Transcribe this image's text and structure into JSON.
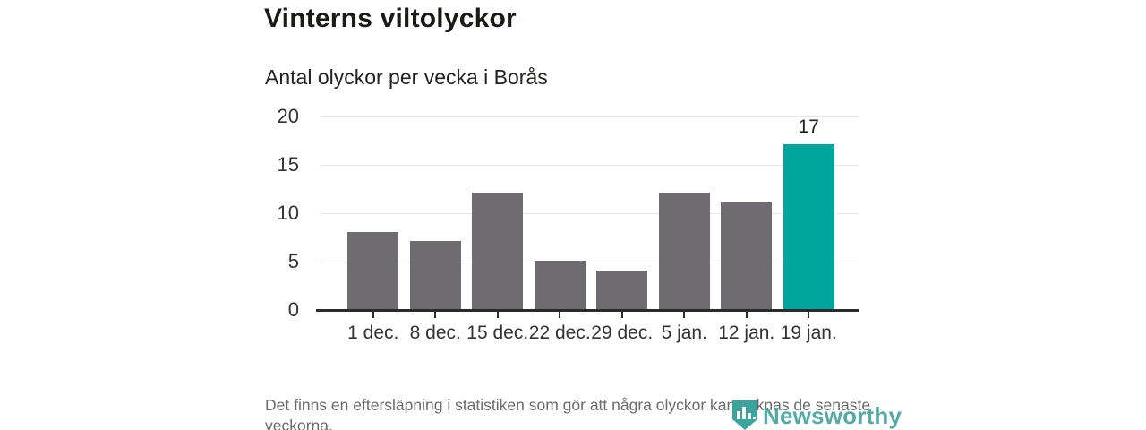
{
  "page": {
    "title": "Vinterns viltolyckor",
    "subtitle": "Antal olyckor per vecka i Borås",
    "footnote": "Det finns en eftersläpning i statistiken som gör att några olyckor kan saknas de senaste veckorna.",
    "brand": "Newsworthy"
  },
  "colors": {
    "bar": "#6e6c70",
    "highlight": "#00a69c",
    "gridline": "#e8e8e8",
    "axis": "#2b2b2b",
    "title_text": "#1a1a18",
    "axis_text": "#333333",
    "muted_text": "#6b6b6b",
    "brand_teal": "#47a39d"
  },
  "chart_data": {
    "type": "bar",
    "title": "Vinterns viltolyckor",
    "subtitle": "Antal olyckor per vecka i Borås",
    "categories": [
      "1 dec.",
      "8 dec.",
      "15 dec.",
      "22 dec.",
      "29 dec.",
      "5 jan.",
      "12 jan.",
      "19 jan."
    ],
    "values": [
      8,
      7,
      12,
      5,
      4,
      12,
      11,
      17
    ],
    "highlight_index": 7,
    "value_label_indexes": [
      7
    ],
    "xlabel": "",
    "ylabel": "",
    "ylim": [
      0,
      20
    ],
    "yticks": [
      0,
      5,
      10,
      15,
      20
    ],
    "grid": "horizontal",
    "legend": false,
    "bar_color": "#6e6c70",
    "highlight_color": "#00a69c"
  }
}
